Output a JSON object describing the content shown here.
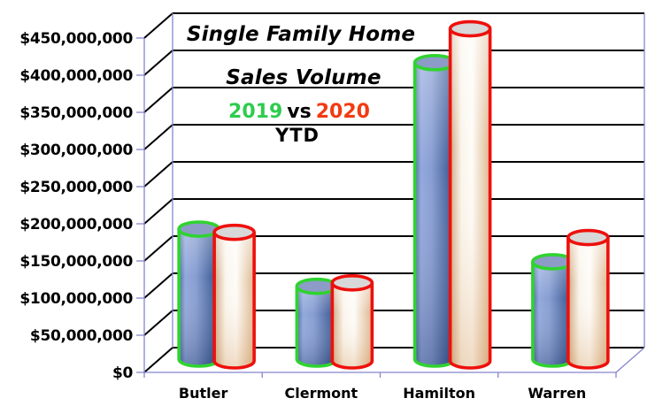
{
  "titles": {
    "line1": "Single Family Home",
    "line2": "Sales Volume"
  },
  "legend": {
    "series1": "2019",
    "vs": "vs",
    "series2": "2020",
    "period": "YTD"
  },
  "colors": {
    "series1_text": "#2ECC4E",
    "series2_text": "#F23A12",
    "series1_outline": "#2FD32F",
    "series2_outline": "#EE100C",
    "series1_body": [
      "#4F6CA6",
      "#93A9DC",
      "#879ED2",
      "#32508A"
    ],
    "series1_top": "#8C9CC6",
    "series2_body": [
      "#D0A981",
      "#FAF5EC",
      "#FEFCF8",
      "#DDB68D"
    ],
    "series2_top": "#D8D8D8",
    "gridline": "#000000",
    "axis_line": "#8585CE",
    "background": "#FFFFFF",
    "text": "#000000"
  },
  "chart_data": {
    "type": "bar",
    "variant": "3d-cylinder",
    "title": "Single Family Home Sales Volume 2019 vs 2020 YTD",
    "categories": [
      "Butler",
      "Clermont",
      "Hamilton",
      "Warren"
    ],
    "series": [
      {
        "name": "2019",
        "values": [
          175000000,
          98000000,
          399000000,
          131000000
        ]
      },
      {
        "name": "2020",
        "values": [
          173000000,
          105000000,
          447000000,
          166000000
        ]
      }
    ],
    "xlabel": "",
    "ylabel": "",
    "ylim": [
      0,
      450000000
    ],
    "ytick_step": 50000000,
    "ytick_labels": [
      "$0",
      "$50,000,000",
      "$100,000,000",
      "$150,000,000",
      "$200,000,000",
      "$250,000,000",
      "$300,000,000",
      "$350,000,000",
      "$400,000,000",
      "$450,000,000"
    ],
    "grid": true,
    "legend_position": "inside-top-center"
  }
}
